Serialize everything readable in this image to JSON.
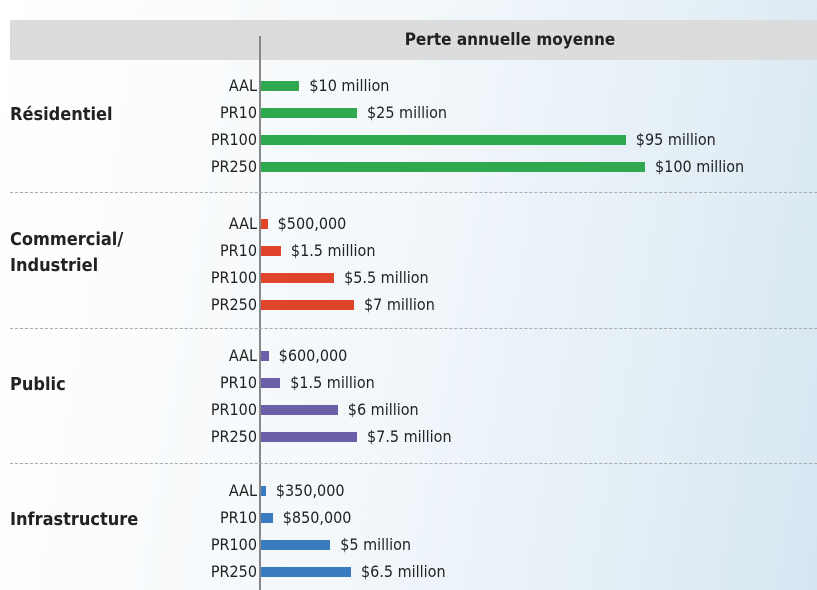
{
  "chart_data": {
    "type": "grouped-bar",
    "title": "Perte annuelle moyenne",
    "groups": [
      {
        "name": "Résidentiel",
        "color": "#2fa84f",
        "categories": [
          "AAL",
          "PR10",
          "PR100",
          "PR250"
        ],
        "values": [
          10000000,
          25000000,
          95000000,
          100000000
        ],
        "value_labels": [
          "$10 million",
          "$25 million",
          "$95 million",
          "$100 million"
        ]
      },
      {
        "name": "Commercial/ Industriel",
        "color": "#e0452c",
        "categories": [
          "AAL",
          "PR10",
          "PR100",
          "PR250"
        ],
        "values": [
          500000,
          1500000,
          5500000,
          7000000
        ],
        "value_labels": [
          "$500,000",
          "$1.5 million",
          "$5.5 million",
          "$7 million"
        ]
      },
      {
        "name": "Public",
        "color": "#6b5fa8",
        "categories": [
          "AAL",
          "PR10",
          "PR100",
          "PR250"
        ],
        "values": [
          600000,
          1500000,
          6000000,
          7500000
        ],
        "value_labels": [
          "$600,000",
          "$1.5 million",
          "$6 million",
          "$7.5 million"
        ]
      },
      {
        "name": "Infrastructure",
        "color": "#3a7cc0",
        "categories": [
          "AAL",
          "PR10",
          "PR100",
          "PR250"
        ],
        "values": [
          350000,
          850000,
          5000000,
          6500000
        ],
        "value_labels": [
          "$350,000",
          "$850,000",
          "$5 million",
          "$6.5 million"
        ]
      }
    ]
  }
}
